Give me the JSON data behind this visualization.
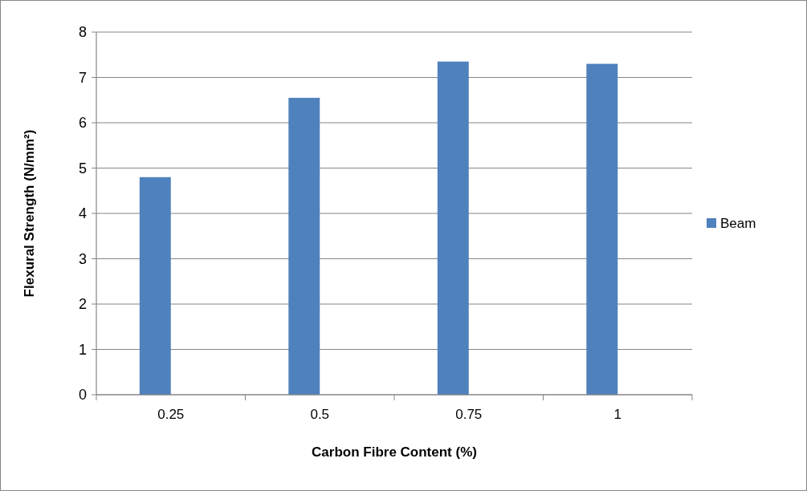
{
  "chart_data": {
    "type": "bar",
    "xlabel": "Carbon Fibre Content (%)",
    "ylabel": "Flexural Strength (N/mm²)",
    "categories": [
      "0.25",
      "0.5",
      "0.75",
      "1"
    ],
    "series": [
      {
        "name": "Beam",
        "color": "#4f81bd",
        "values": [
          4.8,
          6.55,
          7.35,
          7.3
        ]
      }
    ],
    "ylim": [
      0,
      8
    ],
    "yticks": [
      0,
      1,
      2,
      3,
      4,
      5,
      6,
      7,
      8
    ],
    "grid": "y",
    "legend": "right"
  }
}
